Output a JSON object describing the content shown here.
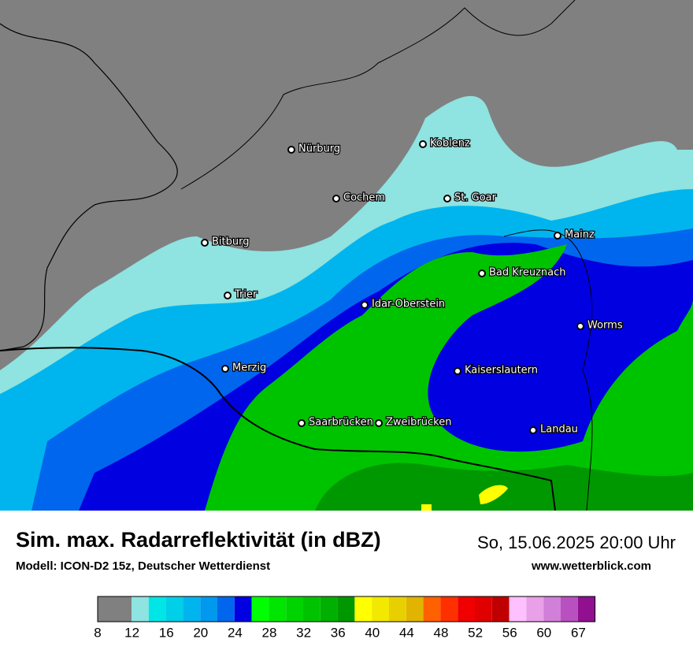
{
  "header": {
    "title": "Sim. max. Radarreflektivität (in dBZ)",
    "model": "Modell: ICON-D2 15z, Deutscher Wetterdienst",
    "datetime": "So, 15.06.2025 20:00 Uhr",
    "website": "www.wetterblick.com"
  },
  "map": {
    "cities": [
      {
        "label": "Nürburg"
      },
      {
        "label": "Koblenz"
      },
      {
        "label": "Cochem"
      },
      {
        "label": "St. Goar"
      },
      {
        "label": "Bitburg"
      },
      {
        "label": "Mainz"
      },
      {
        "label": "Bad Kreuznach"
      },
      {
        "label": "Trier"
      },
      {
        "label": "Idar-Oberstein"
      },
      {
        "label": "Worms"
      },
      {
        "label": "Merzig"
      },
      {
        "label": "Kaiserslautern"
      },
      {
        "label": "Saarbrücken"
      },
      {
        "label": "Zweibrücken"
      },
      {
        "label": "Landau"
      }
    ]
  },
  "legend": {
    "ticks": [
      8,
      12,
      16,
      20,
      24,
      28,
      32,
      36,
      40,
      44,
      48,
      52,
      56,
      60,
      67
    ],
    "colors": [
      "#808080",
      "#8fe3e0",
      "#00e5e5",
      "#00cfe8",
      "#00b5ee",
      "#0099ee",
      "#0066ee",
      "#0000e0",
      "#00ff00",
      "#00e600",
      "#00d400",
      "#00c300",
      "#00b000",
      "#009800",
      "#ffff00",
      "#f2e800",
      "#e8d000",
      "#e0b400",
      "#ff6000",
      "#ff3000",
      "#f00000",
      "#e00000",
      "#c00000",
      "#ffc0ff",
      "#e8a0e8",
      "#d080d8",
      "#b850c0",
      "#901090"
    ]
  }
}
